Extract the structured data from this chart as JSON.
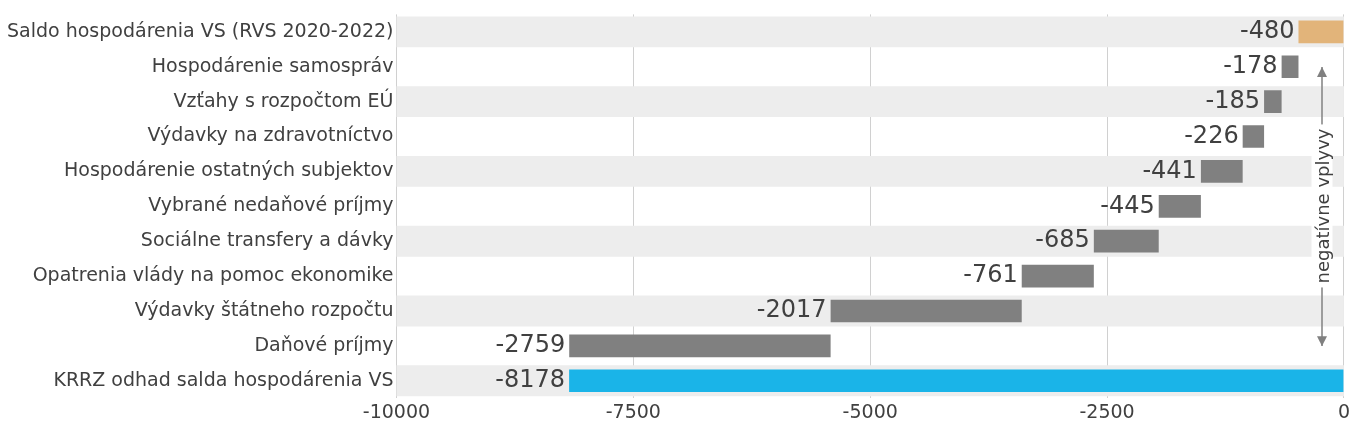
{
  "chart_data": {
    "type": "bar",
    "orientation": "horizontal",
    "categories": [
      "Saldo hospodárenia VS (RVS 2020-2022)",
      "Hospodárenie samospráv",
      "Vzťahy s rozpočtom EÚ",
      "Výdavky na zdravotníctvo",
      "Hospodárenie ostatných subjektov",
      "Vybrané nedaňové príjmy",
      "Sociálne transfery a dávky",
      "Opatrenia vlády na pomoc ekonomike",
      "Výdavky štátneho rozpočtu",
      "Daňové príjmy",
      "KRRZ odhad salda hospodárenia VS"
    ],
    "values": [
      -480,
      -178,
      -185,
      -226,
      -441,
      -445,
      -685,
      -761,
      -2017,
      -2759,
      -8178
    ],
    "base": [
      0,
      -480,
      -658,
      -843,
      -1069,
      -1510,
      -1955,
      -2640,
      -3401,
      -5418,
      0
    ],
    "colors": [
      "#e2b47a",
      "#808080",
      "#808080",
      "#808080",
      "#808080",
      "#808080",
      "#808080",
      "#808080",
      "#808080",
      "#808080",
      "#1ab4e8"
    ],
    "xlim": [
      -10000,
      0
    ],
    "xticks": [
      -10000,
      -7500,
      -5000,
      -2500,
      0
    ],
    "bands": [
      {
        "axis": "y",
        "from": "Saldo hospodárenia VS (RVS 2020-2022)",
        "to": "Saldo hospodárenia VS (RVS 2020-2022)",
        "color": "#ededed"
      },
      {
        "axis": "y",
        "from": "Vzťahy s rozpočtom EÚ",
        "to": "Vzťahy s rozpočtom EÚ",
        "color": "#ededed"
      },
      {
        "axis": "y",
        "from": "Hospodárenie ostatných subjektov",
        "to": "Hospodárenie ostatných subjektov",
        "color": "#ededed"
      },
      {
        "axis": "y",
        "from": "Sociálne transfery a dávky",
        "to": "Sociálne transfery a dávky",
        "color": "#ededed"
      },
      {
        "axis": "y",
        "from": "Výdavky štátneho rozpočtu",
        "to": "Výdavky štátneho rozpočtu",
        "color": "#ededed"
      },
      {
        "axis": "y",
        "from": "KRRZ odhad salda hospodárenia VS",
        "to": "KRRZ odhad salda hospodárenia VS",
        "color": "#ededed"
      }
    ],
    "grid": "x",
    "data_labels": true,
    "annotations": [
      "negatívne vplyvy"
    ]
  }
}
